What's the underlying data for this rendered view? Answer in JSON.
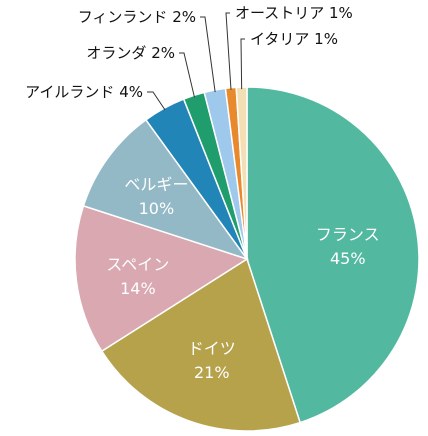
{
  "chart_data": {
    "type": "pie",
    "start": "top",
    "direction": "clockwise",
    "slices": [
      {
        "label": "フランス",
        "value": 45,
        "value_text": "45%",
        "color": "#52b8a0",
        "label_position": "inside"
      },
      {
        "label": "ドイツ",
        "value": 21,
        "value_text": "21%",
        "color": "#b5a24b",
        "label_position": "inside"
      },
      {
        "label": "スペイン",
        "value": 14,
        "value_text": "14%",
        "color": "#d9a8b1",
        "label_position": "inside"
      },
      {
        "label": "ベルギー",
        "value": 10,
        "value_text": "10%",
        "color": "#93b8c6",
        "label_position": "inside"
      },
      {
        "label": "アイルランド",
        "value": 4,
        "value_text": "4%",
        "color": "#2185b8",
        "label_position": "outside"
      },
      {
        "label": "オランダ",
        "value": 2,
        "value_text": "2%",
        "color": "#1f9d6d",
        "label_position": "outside"
      },
      {
        "label": "フィンランド",
        "value": 2,
        "value_text": "2%",
        "color": "#9ec8ec",
        "label_position": "outside"
      },
      {
        "label": "オーストリア",
        "value": 1,
        "value_text": "1%",
        "color": "#e8892e",
        "label_position": "outside"
      },
      {
        "label": "イタリア",
        "value": 1,
        "value_text": "1%",
        "color": "#f3dfb3",
        "label_position": "outside"
      }
    ]
  }
}
